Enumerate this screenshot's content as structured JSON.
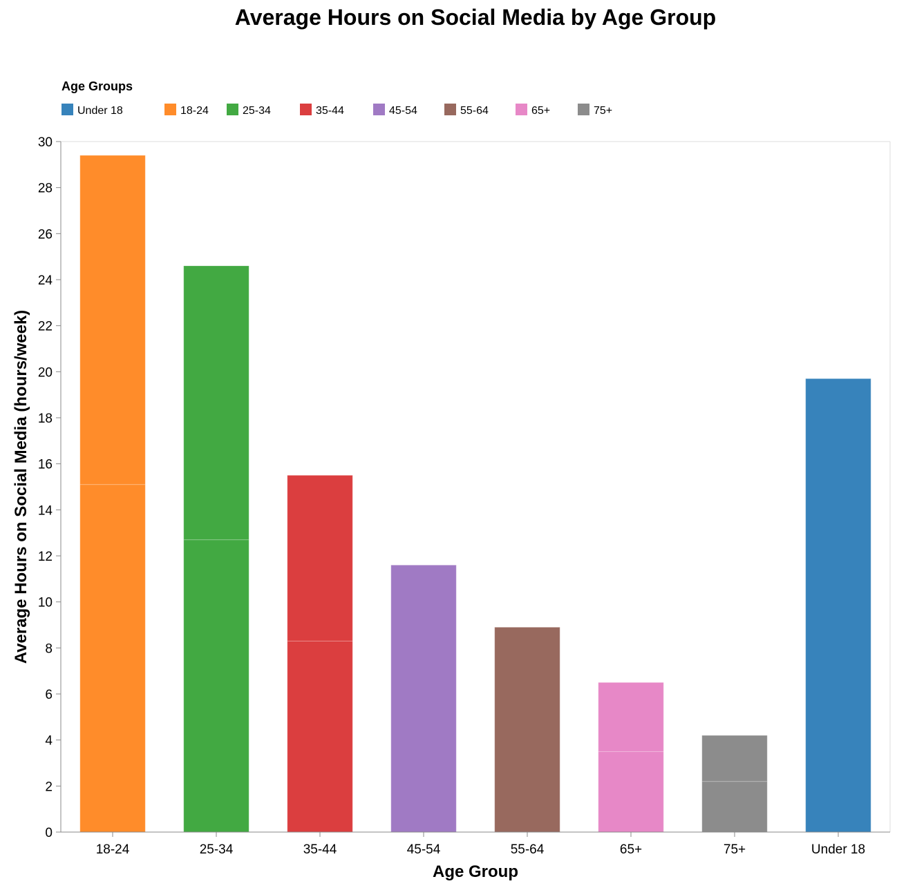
{
  "chart_data": {
    "type": "bar",
    "title": "Average Hours on Social Media by Age Group",
    "xlabel": "Age Group",
    "ylabel": "Average Hours on Social Media (hours/week)",
    "ylim": [
      0,
      30
    ],
    "yticks": [
      0,
      2,
      4,
      6,
      8,
      10,
      12,
      14,
      16,
      18,
      20,
      22,
      24,
      26,
      28,
      30
    ],
    "grid": false,
    "stacked": true,
    "legend": {
      "title": "Age Groups",
      "placement": "top-left",
      "entries": [
        {
          "label": "Under 18",
          "color": "#3783bb"
        },
        {
          "label": "18-24",
          "color": "#ff8c2a"
        },
        {
          "label": "25-34",
          "color": "#42a942"
        },
        {
          "label": "35-44",
          "color": "#db3e3f"
        },
        {
          "label": "45-54",
          "color": "#a07ac4"
        },
        {
          "label": "55-64",
          "color": "#98695e"
        },
        {
          "label": "65+",
          "color": "#e788c7"
        },
        {
          "label": "75+",
          "color": "#8c8c8c"
        }
      ]
    },
    "categories": [
      "18-24",
      "25-34",
      "35-44",
      "45-54",
      "55-64",
      "65+",
      "75+",
      "Under 18"
    ],
    "bars": [
      {
        "category": "18-24",
        "color": "#ff8c2a",
        "segments": [
          15.1,
          14.3
        ]
      },
      {
        "category": "25-34",
        "color": "#42a942",
        "segments": [
          12.7,
          11.9
        ]
      },
      {
        "category": "35-44",
        "color": "#db3e3f",
        "segments": [
          8.3,
          7.2
        ]
      },
      {
        "category": "45-54",
        "color": "#a07ac4",
        "segments": [
          11.6
        ]
      },
      {
        "category": "55-64",
        "color": "#98695e",
        "segments": [
          8.9
        ]
      },
      {
        "category": "65+",
        "color": "#e788c7",
        "segments": [
          3.5,
          3.0
        ]
      },
      {
        "category": "75+",
        "color": "#8c8c8c",
        "segments": [
          2.2,
          2.0
        ]
      },
      {
        "category": "Under 18",
        "color": "#3783bb",
        "segments": [
          19.7
        ]
      }
    ]
  }
}
